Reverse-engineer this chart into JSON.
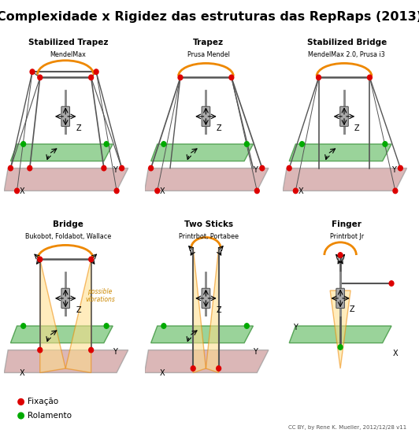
{
  "title": "Complexidade x Rigidez das estruturas das RepRaps (2013)",
  "title_fontsize": 11.5,
  "background_color": "#ffffff",
  "panels": [
    {
      "name": "Stabilized Trapez",
      "subtitle": "MendelMax",
      "row": 0,
      "col": 0
    },
    {
      "name": "Trapez",
      "subtitle": "Prusa Mendel",
      "row": 0,
      "col": 1
    },
    {
      "name": "Stabilized Bridge",
      "subtitle": "MendelMax 2.0, Prusa i3",
      "row": 0,
      "col": 2
    },
    {
      "name": "Bridge",
      "subtitle": "Bukobot, Foldabot, Wallace",
      "row": 1,
      "col": 0
    },
    {
      "name": "Two Sticks",
      "subtitle": "Printrbot, Portabee",
      "row": 1,
      "col": 1
    },
    {
      "name": "Finger",
      "subtitle": "Printrbot Jr",
      "row": 1,
      "col": 2
    }
  ],
  "legend_items": [
    {
      "label": "Fixação",
      "color": "#dd0000"
    },
    {
      "label": "Rolamento",
      "color": "#00aa00"
    }
  ],
  "credit": "CC BY, by Rene K. Mueller, 2012/12/28 v11",
  "possible_vibrations_text": "possible\nvibrations",
  "possible_vibrations_color": "#cc8800",
  "frame_color": "#555555",
  "orange_color": "#ee8800",
  "green_plane_color": "#88cc88",
  "red_plane_color": "#cc8888",
  "fix_dot_color": "#dd0000",
  "roll_dot_color": "#00aa00"
}
